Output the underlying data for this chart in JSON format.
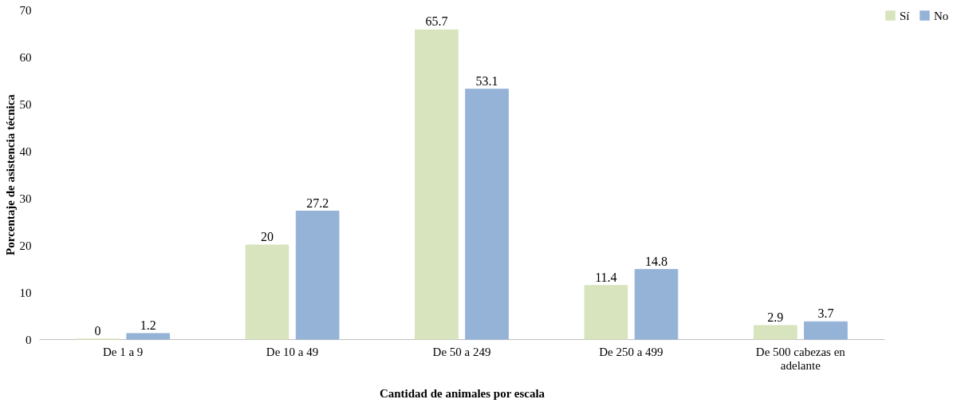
{
  "chart_data": {
    "type": "bar",
    "xlabel": "Cantidad de animales por escala",
    "ylabel": "Porcentaje de asistencia técnica",
    "categories": [
      "De 1 a 9",
      "De 10 a 49",
      "De 50 a 249",
      "De 250 a 499",
      "De 500 cabezas en adelante"
    ],
    "series": [
      {
        "name": "Sí",
        "color": "#d7e4bd",
        "values": [
          0,
          20,
          65.7,
          11.4,
          2.9
        ]
      },
      {
        "name": "No",
        "color": "#95b3d7",
        "values": [
          1.2,
          27.2,
          53.1,
          14.8,
          3.7
        ]
      }
    ],
    "ylim": [
      0,
      70
    ],
    "yticks": [
      0,
      10,
      20,
      30,
      40,
      50,
      60,
      70
    ],
    "grid": false,
    "legend": "right",
    "data_labels": true
  }
}
